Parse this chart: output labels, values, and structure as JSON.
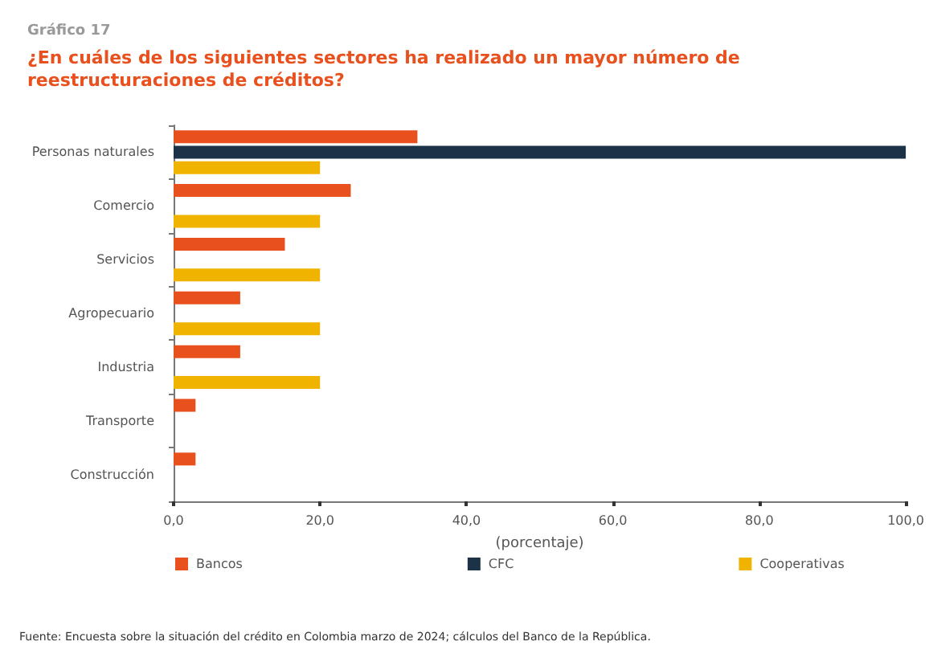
{
  "chart_data": {
    "type": "bar",
    "orientation": "horizontal",
    "title": "Gráfico 17",
    "subtitle": "¿En cuáles de los siguientes sectores ha realizado un mayor número de reestructuraciones de créditos?",
    "xlabel": "(porcentaje)",
    "categories": [
      "Personas naturales",
      "Comercio",
      "Servicios",
      "Agropecuario",
      "Industria",
      "Transporte",
      "Construcción"
    ],
    "series": [
      {
        "name": "Bancos",
        "color": "#e8501e",
        "values": [
          33.3,
          24.2,
          15.2,
          9.1,
          9.1,
          3.0,
          3.0
        ]
      },
      {
        "name": "CFC",
        "color": "#1c3347",
        "values": [
          100,
          0,
          0,
          0,
          0,
          0,
          0
        ]
      },
      {
        "name": "Cooperativas",
        "color": "#f0b400",
        "values": [
          20,
          20,
          20,
          20,
          20,
          0,
          0
        ]
      }
    ],
    "xlim": [
      0,
      100
    ],
    "xticks": [
      {
        "value": 0,
        "label": "0,0"
      },
      {
        "value": 20,
        "label": "20,0"
      },
      {
        "value": 40,
        "label": "40,0"
      },
      {
        "value": 60,
        "label": "60,0"
      },
      {
        "value": 80,
        "label": "80,0"
      },
      {
        "value": 100,
        "label": "100,0"
      }
    ],
    "grid": false,
    "legend": "bottom",
    "annotations": [
      "Fuente: Encuesta sobre la situación del crédito en Colombia marzo de 2024; cálculos del Banco de la República."
    ]
  }
}
